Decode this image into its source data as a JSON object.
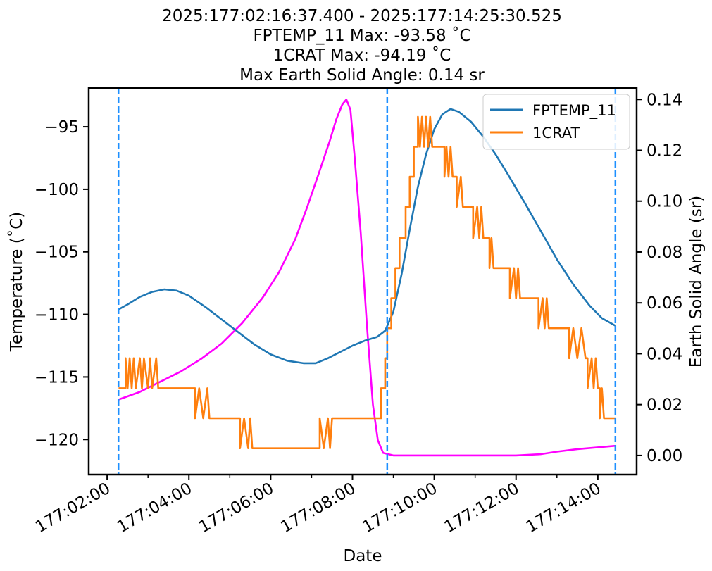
{
  "chart_data": {
    "type": "line",
    "title_lines": [
      "2025:177:02:16:37.400 - 2025:177:14:25:30.525",
      "FPTEMP_11 Max: -93.58 ˚C",
      "1CRAT Max: -94.19 ˚C",
      "Max Earth Solid Angle: 0.14 sr"
    ],
    "xlabel": "Date",
    "ylabel_left": "Temperature (˚C)",
    "ylabel_right": "Earth Solid Angle (sr)",
    "x_range_hours": [
      1.55,
      14.95
    ],
    "x_ticks": [
      {
        "hour": 2,
        "label": "177:02:00"
      },
      {
        "hour": 4,
        "label": "177:04:00"
      },
      {
        "hour": 6,
        "label": "177:06:00"
      },
      {
        "hour": 8,
        "label": "177:08:00"
      },
      {
        "hour": 10,
        "label": "177:10:00"
      },
      {
        "hour": 12,
        "label": "177:12:00"
      },
      {
        "hour": 14,
        "label": "177:14:00"
      }
    ],
    "x_minor_ticks_hours": [
      3,
      5,
      7,
      9,
      11,
      13
    ],
    "ylim_left": [
      -122.8,
      -91.9
    ],
    "y_ticks_left": [
      -95,
      -100,
      -105,
      -110,
      -115,
      -120
    ],
    "y_tick_labels_left": [
      "−95",
      "−100",
      "−105",
      "−110",
      "−115",
      "−120"
    ],
    "ylim_right": [
      -0.0075,
      0.1445
    ],
    "y_ticks_right": [
      0.0,
      0.02,
      0.04,
      0.06,
      0.08,
      0.1,
      0.12,
      0.14
    ],
    "y_tick_labels_right": [
      "0.00",
      "0.02",
      "0.04",
      "0.06",
      "0.08",
      "0.10",
      "0.12",
      "0.14"
    ],
    "vlines_hours": [
      2.277,
      8.85,
      14.43
    ],
    "grid": false,
    "legend_position": "top-right",
    "series": [
      {
        "name": "FPTEMP_11",
        "axis": "left",
        "color": "#1f77b4",
        "points": [
          [
            2.28,
            -109.6
          ],
          [
            2.5,
            -109.2
          ],
          [
            2.8,
            -108.6
          ],
          [
            3.1,
            -108.2
          ],
          [
            3.4,
            -108.0
          ],
          [
            3.7,
            -108.1
          ],
          [
            4.0,
            -108.5
          ],
          [
            4.4,
            -109.4
          ],
          [
            4.8,
            -110.4
          ],
          [
            5.2,
            -111.4
          ],
          [
            5.6,
            -112.4
          ],
          [
            6.0,
            -113.2
          ],
          [
            6.4,
            -113.7
          ],
          [
            6.8,
            -113.9
          ],
          [
            7.1,
            -113.9
          ],
          [
            7.4,
            -113.5
          ],
          [
            7.7,
            -113.0
          ],
          [
            8.0,
            -112.5
          ],
          [
            8.3,
            -112.1
          ],
          [
            8.6,
            -111.8
          ],
          [
            8.8,
            -111.3
          ],
          [
            9.0,
            -109.8
          ],
          [
            9.2,
            -106.8
          ],
          [
            9.4,
            -103.2
          ],
          [
            9.6,
            -99.8
          ],
          [
            9.8,
            -97.2
          ],
          [
            10.0,
            -95.2
          ],
          [
            10.2,
            -94.0
          ],
          [
            10.4,
            -93.58
          ],
          [
            10.6,
            -93.8
          ],
          [
            10.9,
            -94.6
          ],
          [
            11.2,
            -95.8
          ],
          [
            11.5,
            -97.2
          ],
          [
            11.8,
            -98.8
          ],
          [
            12.2,
            -101.0
          ],
          [
            12.6,
            -103.3
          ],
          [
            13.0,
            -105.6
          ],
          [
            13.4,
            -107.6
          ],
          [
            13.8,
            -109.3
          ],
          [
            14.1,
            -110.3
          ],
          [
            14.43,
            -110.9
          ]
        ]
      },
      {
        "name": "1CRAT",
        "axis": "left",
        "color": "#ff7f0e",
        "points": [
          [
            2.28,
            -115.9
          ],
          [
            2.45,
            -115.9
          ],
          [
            2.45,
            -113.5
          ],
          [
            2.5,
            -115.9
          ],
          [
            2.55,
            -113.5
          ],
          [
            2.6,
            -115.9
          ],
          [
            2.65,
            -113.5
          ],
          [
            2.7,
            -115.9
          ],
          [
            2.8,
            -113.5
          ],
          [
            2.85,
            -115.9
          ],
          [
            2.9,
            -113.5
          ],
          [
            3.0,
            -115.9
          ],
          [
            3.05,
            -113.5
          ],
          [
            3.1,
            -115.9
          ],
          [
            3.2,
            -113.5
          ],
          [
            3.25,
            -115.9
          ],
          [
            4.15,
            -115.9
          ],
          [
            4.15,
            -118.3
          ],
          [
            4.25,
            -115.9
          ],
          [
            4.35,
            -118.3
          ],
          [
            4.45,
            -115.9
          ],
          [
            4.5,
            -118.3
          ],
          [
            5.25,
            -118.3
          ],
          [
            5.25,
            -120.7
          ],
          [
            5.35,
            -118.3
          ],
          [
            5.45,
            -120.7
          ],
          [
            5.5,
            -118.3
          ],
          [
            5.55,
            -120.7
          ],
          [
            7.2,
            -120.7
          ],
          [
            7.2,
            -118.3
          ],
          [
            7.3,
            -120.7
          ],
          [
            7.4,
            -118.3
          ],
          [
            7.45,
            -120.7
          ],
          [
            7.5,
            -118.3
          ],
          [
            8.7,
            -118.3
          ],
          [
            8.7,
            -115.9
          ],
          [
            8.8,
            -115.9
          ],
          [
            8.8,
            -113.5
          ],
          [
            8.85,
            -113.5
          ],
          [
            8.85,
            -111.1
          ],
          [
            8.95,
            -111.1
          ],
          [
            8.95,
            -108.7
          ],
          [
            9.05,
            -108.7
          ],
          [
            9.05,
            -106.3
          ],
          [
            9.15,
            -106.3
          ],
          [
            9.15,
            -103.9
          ],
          [
            9.3,
            -103.9
          ],
          [
            9.3,
            -101.4
          ],
          [
            9.4,
            -101.4
          ],
          [
            9.4,
            -99.0
          ],
          [
            9.5,
            -99.0
          ],
          [
            9.5,
            -96.6
          ],
          [
            9.6,
            -96.6
          ],
          [
            9.6,
            -94.2
          ],
          [
            9.65,
            -96.6
          ],
          [
            9.7,
            -94.2
          ],
          [
            9.75,
            -96.6
          ],
          [
            9.8,
            -94.2
          ],
          [
            9.85,
            -96.6
          ],
          [
            9.9,
            -94.2
          ],
          [
            9.95,
            -96.6
          ],
          [
            10.25,
            -96.6
          ],
          [
            10.25,
            -99.0
          ],
          [
            10.3,
            -96.6
          ],
          [
            10.35,
            -99.0
          ],
          [
            10.4,
            -96.6
          ],
          [
            10.45,
            -99.0
          ],
          [
            10.55,
            -99.0
          ],
          [
            10.55,
            -101.4
          ],
          [
            10.65,
            -99.0
          ],
          [
            10.7,
            -101.4
          ],
          [
            10.95,
            -101.4
          ],
          [
            10.95,
            -103.9
          ],
          [
            11.05,
            -101.4
          ],
          [
            11.1,
            -103.9
          ],
          [
            11.15,
            -101.4
          ],
          [
            11.2,
            -103.9
          ],
          [
            11.35,
            -103.9
          ],
          [
            11.35,
            -106.3
          ],
          [
            11.4,
            -103.9
          ],
          [
            11.45,
            -106.3
          ],
          [
            11.85,
            -106.3
          ],
          [
            11.85,
            -108.7
          ],
          [
            11.95,
            -106.3
          ],
          [
            12.0,
            -108.7
          ],
          [
            12.05,
            -106.3
          ],
          [
            12.1,
            -108.7
          ],
          [
            12.55,
            -108.7
          ],
          [
            12.55,
            -111.1
          ],
          [
            12.65,
            -108.7
          ],
          [
            12.7,
            -111.1
          ],
          [
            12.75,
            -108.7
          ],
          [
            12.8,
            -111.1
          ],
          [
            13.3,
            -111.1
          ],
          [
            13.3,
            -113.5
          ],
          [
            13.4,
            -111.1
          ],
          [
            13.5,
            -113.5
          ],
          [
            13.6,
            -111.1
          ],
          [
            13.7,
            -113.5
          ],
          [
            13.75,
            -113.5
          ],
          [
            13.75,
            -115.9
          ],
          [
            13.85,
            -113.5
          ],
          [
            13.9,
            -115.9
          ],
          [
            13.95,
            -113.5
          ],
          [
            14.0,
            -115.9
          ],
          [
            14.05,
            -115.9
          ],
          [
            14.05,
            -118.3
          ],
          [
            14.1,
            -115.9
          ],
          [
            14.15,
            -118.3
          ],
          [
            14.43,
            -118.3
          ]
        ]
      },
      {
        "name": "",
        "axis": "right",
        "color": "#ff00ff",
        "points": [
          [
            2.28,
            0.022
          ],
          [
            2.8,
            0.025
          ],
          [
            3.3,
            0.029
          ],
          [
            3.8,
            0.033
          ],
          [
            4.3,
            0.038
          ],
          [
            4.8,
            0.044
          ],
          [
            5.3,
            0.052
          ],
          [
            5.8,
            0.062
          ],
          [
            6.2,
            0.072
          ],
          [
            6.6,
            0.085
          ],
          [
            6.9,
            0.098
          ],
          [
            7.2,
            0.112
          ],
          [
            7.45,
            0.124
          ],
          [
            7.6,
            0.132
          ],
          [
            7.75,
            0.138
          ],
          [
            7.85,
            0.14
          ],
          [
            7.95,
            0.136
          ],
          [
            8.05,
            0.118
          ],
          [
            8.2,
            0.088
          ],
          [
            8.35,
            0.052
          ],
          [
            8.5,
            0.02
          ],
          [
            8.62,
            0.006
          ],
          [
            8.75,
            0.001
          ],
          [
            9.0,
            0.0
          ],
          [
            10.0,
            0.0
          ],
          [
            11.0,
            0.0
          ],
          [
            12.0,
            0.0
          ],
          [
            12.6,
            0.0005
          ],
          [
            13.0,
            0.0015
          ],
          [
            13.5,
            0.0025
          ],
          [
            14.0,
            0.0032
          ],
          [
            14.43,
            0.0038
          ]
        ]
      }
    ]
  }
}
